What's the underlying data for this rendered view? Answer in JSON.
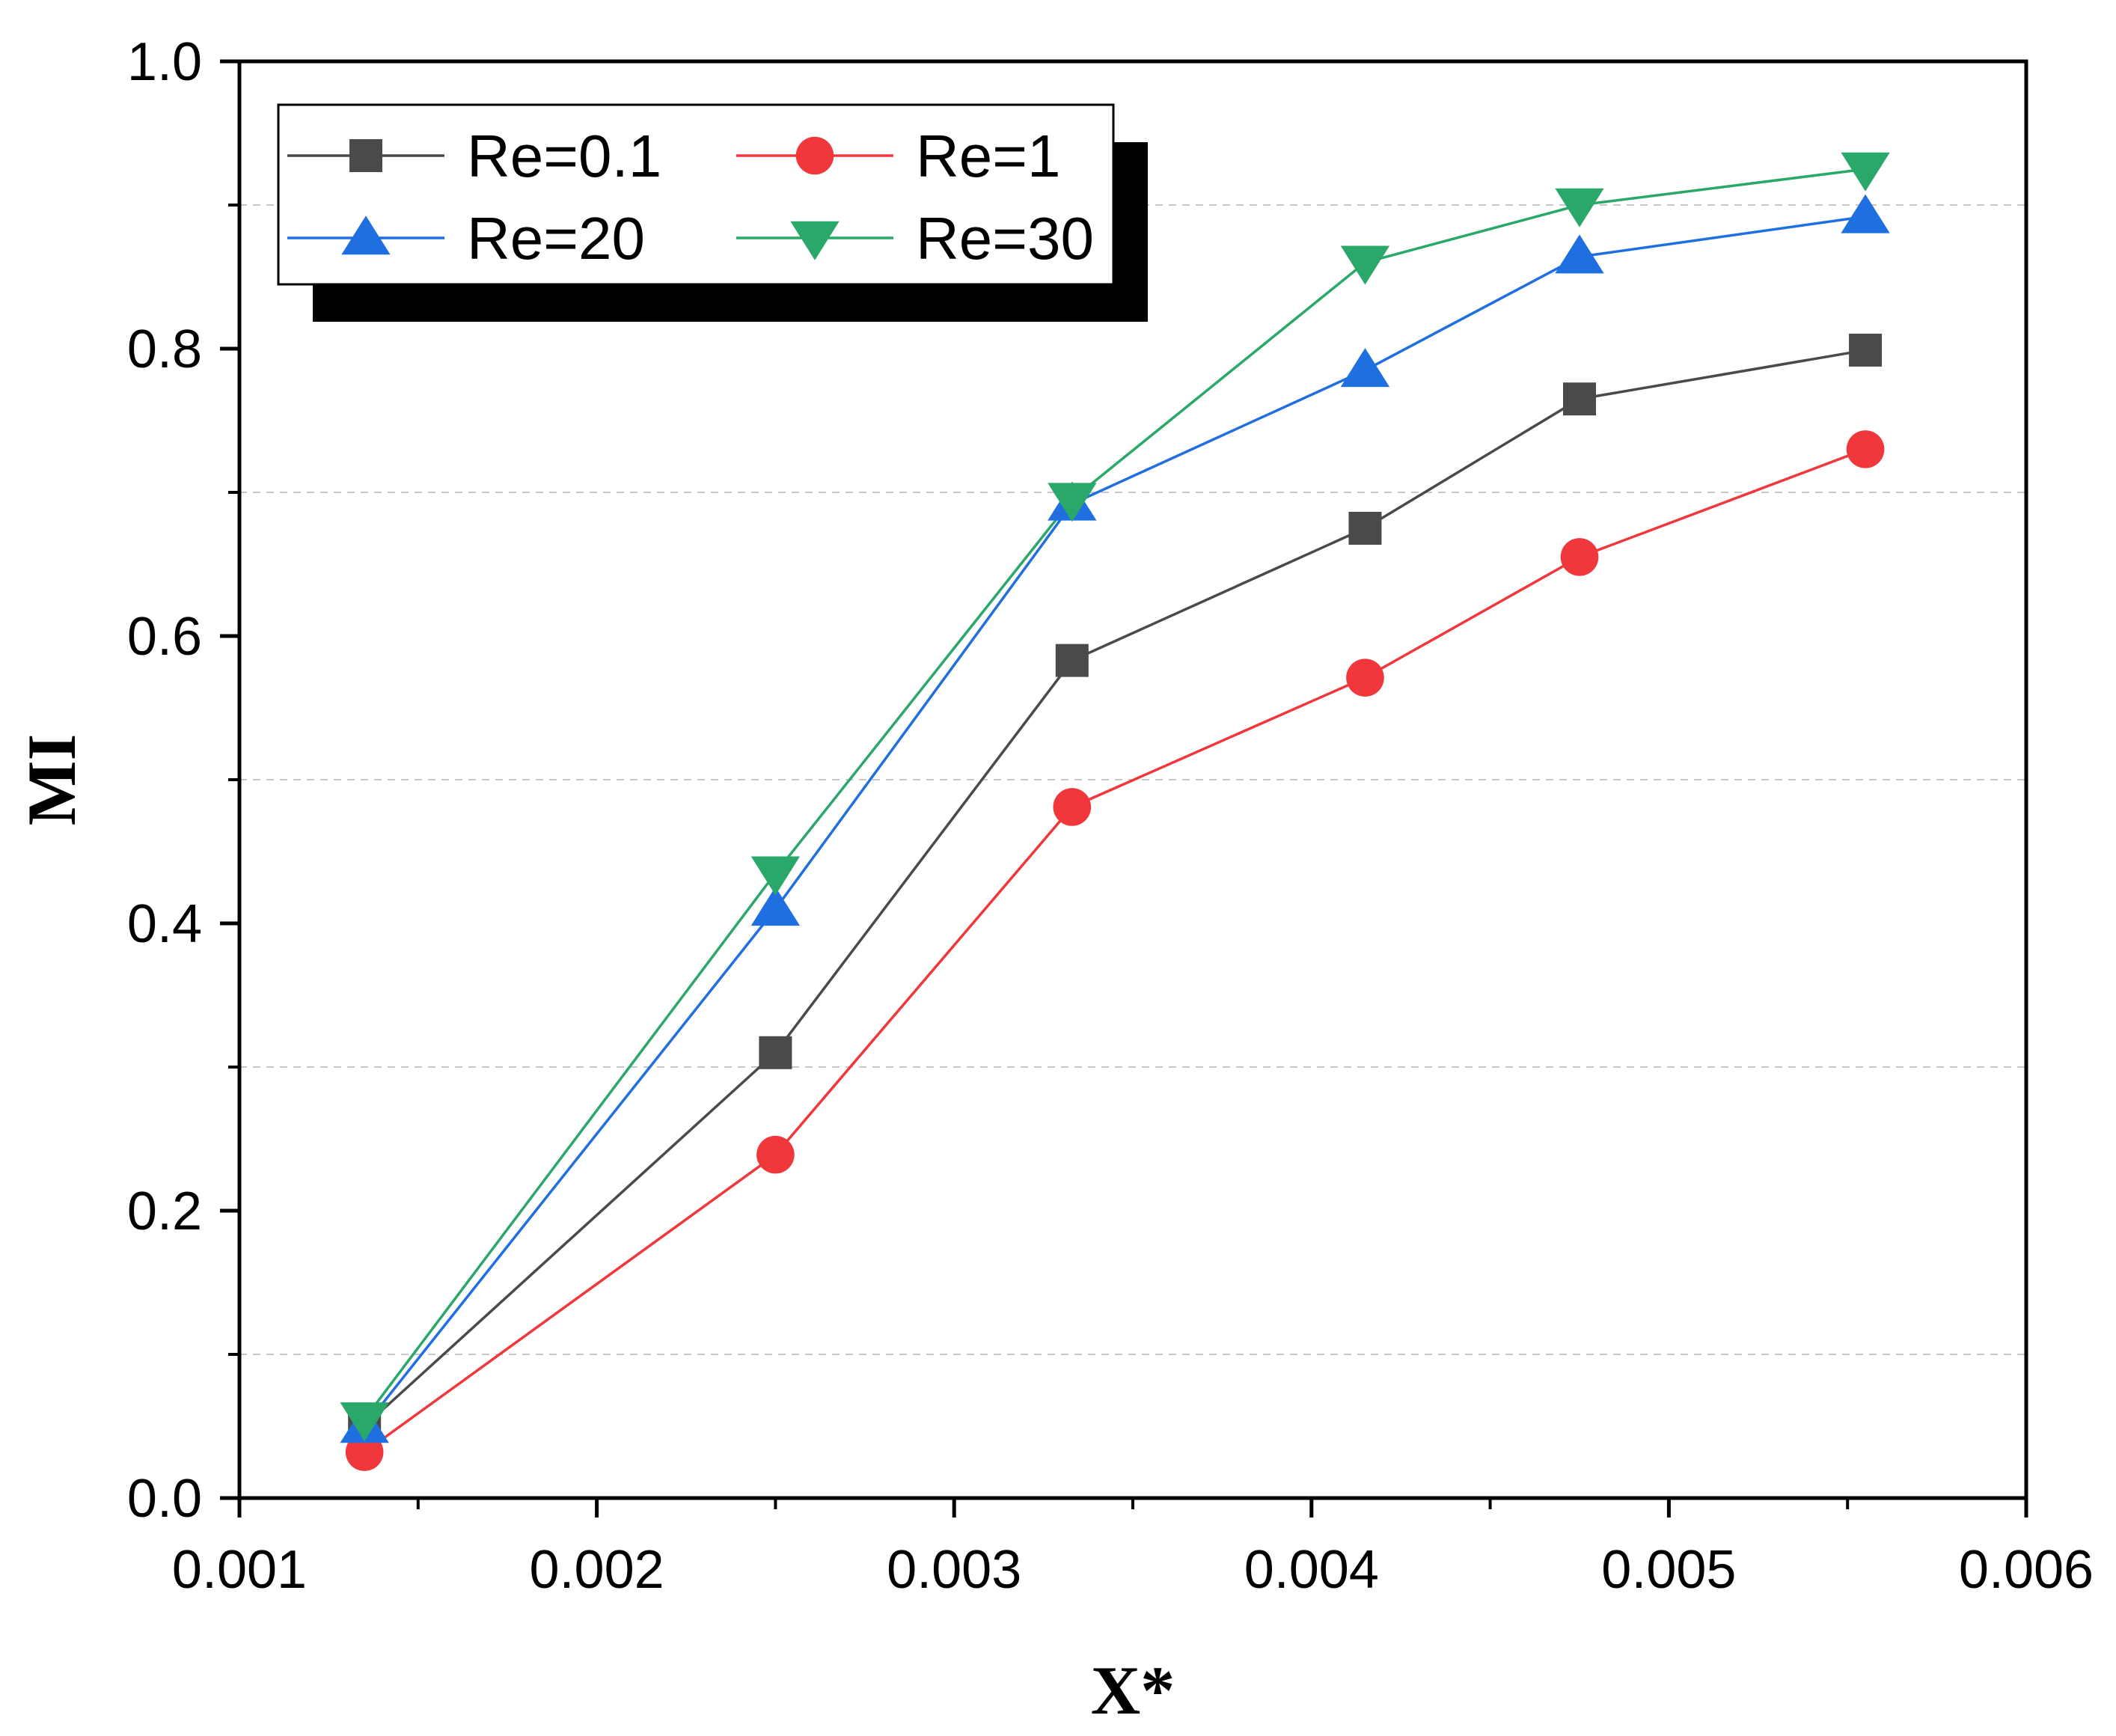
{
  "chart_data": {
    "type": "line",
    "title": "",
    "xlabel": "X*",
    "ylabel": "MI",
    "xlim": [
      0.001,
      0.006
    ],
    "ylim": [
      0.0,
      1.0
    ],
    "x_ticks": [
      "0.001",
      "0.002",
      "0.003",
      "0.004",
      "0.005",
      "0.006"
    ],
    "y_ticks": [
      "0.0",
      "0.2",
      "0.4",
      "0.6",
      "0.8",
      "1.0"
    ],
    "grid": "horizontal dashed at 0.1, 0.3, 0.5, 0.7, 0.9",
    "legend_position": "top-left",
    "x": [
      0.00135,
      0.0025,
      0.00333,
      0.00415,
      0.00475,
      0.00555
    ],
    "series": [
      {
        "name": "Re=0.1",
        "color": "#4a4a4a",
        "marker": "square",
        "values": [
          0.05,
          0.31,
          0.583,
          0.675,
          0.765,
          0.799
        ]
      },
      {
        "name": "Re=1",
        "color": "#f0373c",
        "marker": "circle",
        "values": [
          0.032,
          0.239,
          0.481,
          0.571,
          0.655,
          0.73
        ]
      },
      {
        "name": "Re=20",
        "color": "#1f6fe0",
        "marker": "triangle-up",
        "values": [
          0.05,
          0.41,
          0.692,
          0.785,
          0.864,
          0.892
        ]
      },
      {
        "name": "Re=30",
        "color": "#2aa86a",
        "marker": "triangle-down",
        "values": [
          0.055,
          0.435,
          0.695,
          0.86,
          0.9,
          0.925
        ]
      }
    ]
  }
}
